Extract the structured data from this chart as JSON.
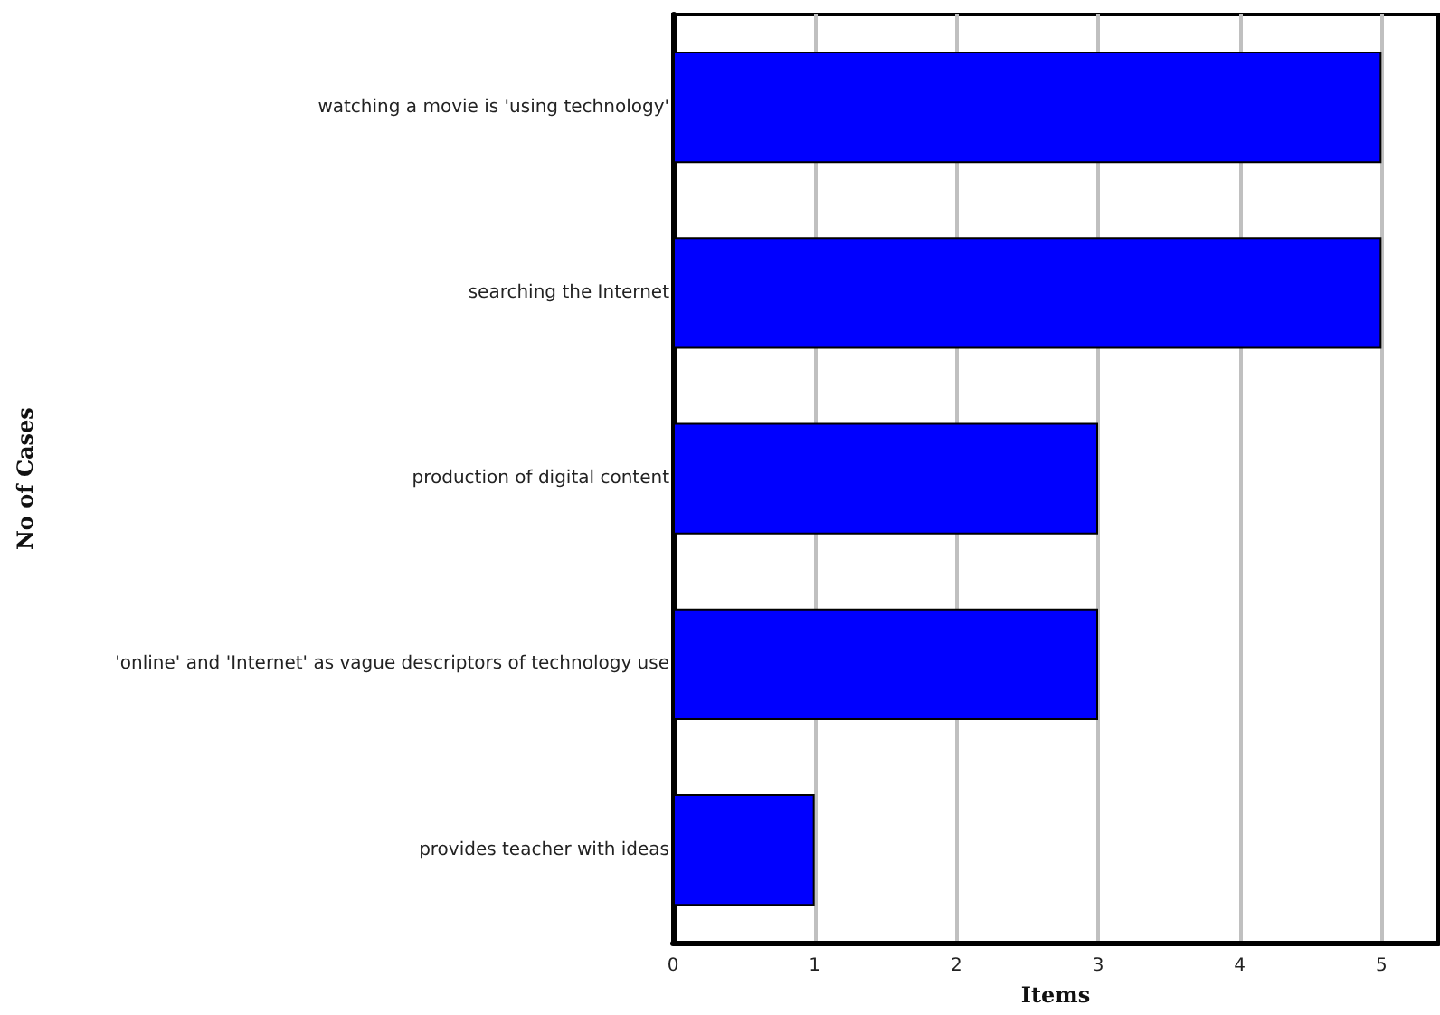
{
  "chart_data": {
    "type": "bar",
    "orientation": "horizontal",
    "xlabel": "Items",
    "ylabel": "No of Cases",
    "categories": [
      "watching a movie is 'using technology'",
      "searching the Internet",
      "production of digital content",
      "'online' and 'Internet' as vague descriptors of technology use",
      "provides teacher with ideas"
    ],
    "values": [
      5,
      5,
      3,
      3,
      1
    ],
    "color": "#0000ff",
    "xlim": [
      0,
      5.4
    ],
    "xticks": [
      0,
      1,
      2,
      3,
      4,
      5
    ],
    "grid": "x"
  }
}
